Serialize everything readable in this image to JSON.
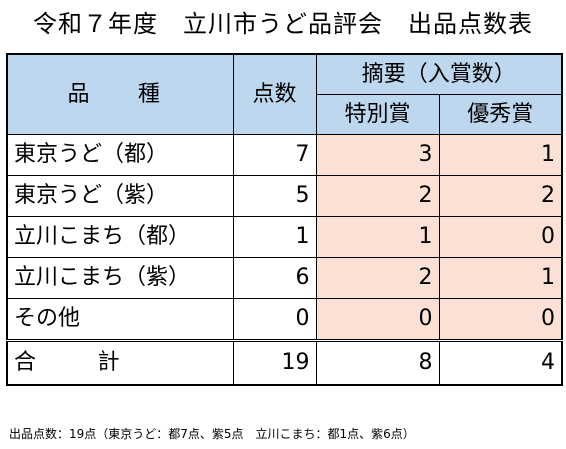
{
  "title": "令和７年度　立川市うど品評会　出品点数表",
  "table": {
    "headers": {
      "variety": "品　種",
      "count": "点数",
      "summary": "摘要（入賞数）",
      "special": "特別賞",
      "excellence": "優秀賞"
    },
    "rows": [
      {
        "variety": "東京うど（都）",
        "count": "7",
        "special": "3",
        "excellence": "1"
      },
      {
        "variety": "東京うど（紫）",
        "count": "5",
        "special": "2",
        "excellence": "2"
      },
      {
        "variety": "立川こまち（都）",
        "count": "1",
        "special": "1",
        "excellence": "0"
      },
      {
        "variety": "立川こまち（紫）",
        "count": "6",
        "special": "2",
        "excellence": "1"
      },
      {
        "variety": "その他",
        "count": "0",
        "special": "0",
        "excellence": "0"
      }
    ],
    "total": {
      "label": "合　計",
      "count": "19",
      "special": "8",
      "excellence": "4"
    }
  },
  "footnote": "出品点数：19点（東京うど：都7点、紫5点　立川こまち：都1点、紫6点）",
  "colors": {
    "header_background": "#bdd7ee",
    "award_background": "#fbe0d6"
  }
}
